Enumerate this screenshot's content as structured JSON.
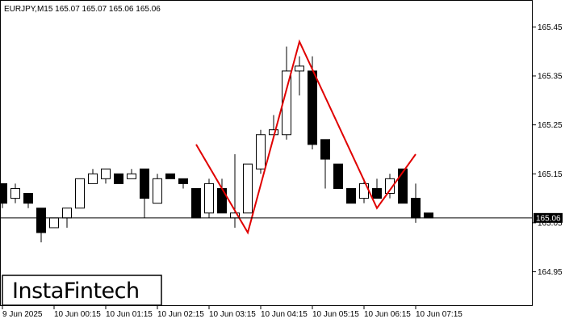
{
  "chart_data": {
    "type": "candlestick",
    "symbol_header": "EURJPY,M15  165.07 165.07 165.06 165.06",
    "brand": "InstaFintech",
    "current_price": 165.06,
    "current_price_label": "165.06",
    "ylim": [
      164.88,
      165.505
    ],
    "y_ticks": [
      {
        "value": 165.45,
        "label": "165.45"
      },
      {
        "value": 165.35,
        "label": "165.35"
      },
      {
        "value": 165.25,
        "label": "165.25"
      },
      {
        "value": 165.15,
        "label": "165.15"
      },
      {
        "value": 165.05,
        "label": "165.05"
      },
      {
        "value": 164.95,
        "label": "164.95"
      }
    ],
    "x_ticks": [
      {
        "index": 0,
        "label": "9 Jun 2025"
      },
      {
        "index": 4,
        "label": "10 Jun 00:15"
      },
      {
        "index": 8,
        "label": "10 Jun 01:15"
      },
      {
        "index": 12,
        "label": "10 Jun 02:15"
      },
      {
        "index": 16,
        "label": "10 Jun 03:15"
      },
      {
        "index": 20,
        "label": "10 Jun 04:15"
      },
      {
        "index": 24,
        "label": "10 Jun 05:15"
      },
      {
        "index": 28,
        "label": "10 Jun 06:15"
      },
      {
        "index": 32,
        "label": "10 Jun 07:15"
      }
    ],
    "candles": [
      {
        "o": 165.13,
        "h": 165.13,
        "l": 165.08,
        "c": 165.09
      },
      {
        "o": 165.1,
        "h": 165.13,
        "l": 165.09,
        "c": 165.12
      },
      {
        "o": 165.11,
        "h": 165.11,
        "l": 165.08,
        "c": 165.09
      },
      {
        "o": 165.08,
        "h": 165.08,
        "l": 165.01,
        "c": 165.03
      },
      {
        "o": 165.04,
        "h": 165.06,
        "l": 165.04,
        "c": 165.06
      },
      {
        "o": 165.06,
        "h": 165.08,
        "l": 165.04,
        "c": 165.08
      },
      {
        "o": 165.08,
        "h": 165.14,
        "l": 165.08,
        "c": 165.14
      },
      {
        "o": 165.13,
        "h": 165.16,
        "l": 165.13,
        "c": 165.15
      },
      {
        "o": 165.14,
        "h": 165.16,
        "l": 165.13,
        "c": 165.16
      },
      {
        "o": 165.15,
        "h": 165.15,
        "l": 165.13,
        "c": 165.13
      },
      {
        "o": 165.14,
        "h": 165.16,
        "l": 165.14,
        "c": 165.15
      },
      {
        "o": 165.16,
        "h": 165.16,
        "l": 165.06,
        "c": 165.1
      },
      {
        "o": 165.09,
        "h": 165.15,
        "l": 165.09,
        "c": 165.14
      },
      {
        "o": 165.15,
        "h": 165.15,
        "l": 165.14,
        "c": 165.14
      },
      {
        "o": 165.14,
        "h": 165.14,
        "l": 165.12,
        "c": 165.13
      },
      {
        "o": 165.12,
        "h": 165.12,
        "l": 165.06,
        "c": 165.06
      },
      {
        "o": 165.07,
        "h": 165.14,
        "l": 165.06,
        "c": 165.13
      },
      {
        "o": 165.12,
        "h": 165.14,
        "l": 165.07,
        "c": 165.07
      },
      {
        "o": 165.06,
        "h": 165.19,
        "l": 165.04,
        "c": 165.07
      },
      {
        "o": 165.07,
        "h": 165.17,
        "l": 165.07,
        "c": 165.17
      },
      {
        "o": 165.16,
        "h": 165.24,
        "l": 165.15,
        "c": 165.23
      },
      {
        "o": 165.23,
        "h": 165.27,
        "l": 165.23,
        "c": 165.24
      },
      {
        "o": 165.23,
        "h": 165.41,
        "l": 165.22,
        "c": 165.36
      },
      {
        "o": 165.36,
        "h": 165.39,
        "l": 165.31,
        "c": 165.37
      },
      {
        "o": 165.36,
        "h": 165.39,
        "l": 165.2,
        "c": 165.21
      },
      {
        "o": 165.22,
        "h": 165.22,
        "l": 165.12,
        "c": 165.18
      },
      {
        "o": 165.17,
        "h": 165.17,
        "l": 165.12,
        "c": 165.12
      },
      {
        "o": 165.12,
        "h": 165.12,
        "l": 165.09,
        "c": 165.09
      },
      {
        "o": 165.1,
        "h": 165.14,
        "l": 165.09,
        "c": 165.13
      },
      {
        "o": 165.12,
        "h": 165.14,
        "l": 165.1,
        "c": 165.1
      },
      {
        "o": 165.11,
        "h": 165.15,
        "l": 165.1,
        "c": 165.14
      },
      {
        "o": 165.16,
        "h": 165.16,
        "l": 165.09,
        "c": 165.09
      },
      {
        "o": 165.1,
        "h": 165.13,
        "l": 165.05,
        "c": 165.06
      },
      {
        "o": 165.07,
        "h": 165.07,
        "l": 165.06,
        "c": 165.06
      }
    ],
    "pattern": {
      "name": "Double Bottom",
      "color": "#e00000",
      "points": [
        {
          "index": 15,
          "value": 165.21
        },
        {
          "index": 19,
          "value": 165.03
        },
        {
          "index": 23,
          "value": 165.42
        },
        {
          "index": 29,
          "value": 165.08
        },
        {
          "index": 32,
          "value": 165.19
        }
      ]
    },
    "colors": {
      "bull_body": "#ffffff",
      "bear_body": "#000000",
      "wick": "#000000",
      "price_line": "#000000",
      "background": "#ffffff"
    }
  }
}
